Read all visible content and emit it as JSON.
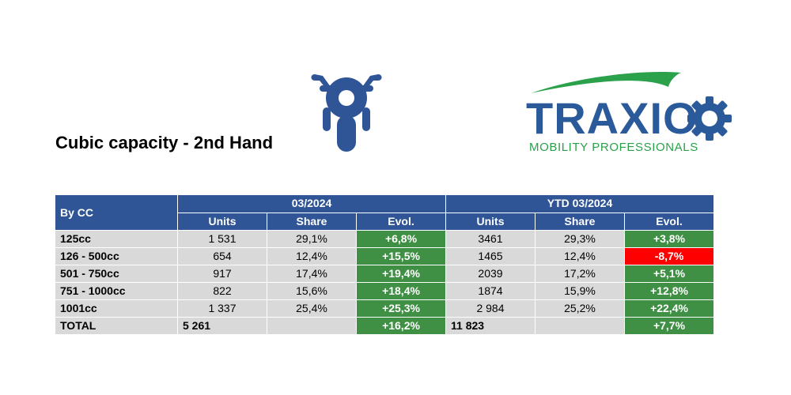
{
  "title": "Cubic capacity - 2nd Hand",
  "logo": {
    "brand": "TRAXIO",
    "tagline": "MOBILITY PROFESSIONALS",
    "brand_color": "#2a5a9a",
    "accent_color": "#2aa14a"
  },
  "icon": {
    "name": "motorcycle-icon",
    "color": "#2f5597"
  },
  "table": {
    "by_cc_label": "By CC",
    "period_month": "03/2024",
    "period_ytd": "YTD 03/2024",
    "col_units": "Units",
    "col_share": "Share",
    "col_evol": "Evol.",
    "rows": [
      {
        "label": "125cc",
        "m_units": "1 531",
        "m_share": "29,1%",
        "m_evol": "+6,8%",
        "y_units": "3461",
        "y_share": "29,3%",
        "y_evol": "+3,8%"
      },
      {
        "label": "126 - 500cc",
        "m_units": "654",
        "m_share": "12,4%",
        "m_evol": "+15,5%",
        "y_units": "1465",
        "y_share": "12,4%",
        "y_evol": "-8,7%"
      },
      {
        "label": "501 - 750cc",
        "m_units": "917",
        "m_share": "17,4%",
        "m_evol": "+19,4%",
        "y_units": "2039",
        "y_share": "17,2%",
        "y_evol": "+5,1%"
      },
      {
        "label": "751 - 1000cc",
        "m_units": "822",
        "m_share": "15,6%",
        "m_evol": "+18,4%",
        "y_units": "1874",
        "y_share": "15,9%",
        "y_evol": "+12,8%"
      },
      {
        "label": "1001cc",
        "m_units": "1 337",
        "m_share": "25,4%",
        "m_evol": "+25,3%",
        "y_units": "2 984",
        "y_share": "25,2%",
        "y_evol": "+22,4%"
      }
    ],
    "total": {
      "label": "TOTAL",
      "m_units": "5 261",
      "m_evol": "+16,2%",
      "y_units": "11 823",
      "y_evol": "+7,7%"
    },
    "colors": {
      "header": "#2f5597",
      "cell": "#d9d9d9",
      "positive": "#3f8f44",
      "negative": "#ff0000"
    }
  }
}
